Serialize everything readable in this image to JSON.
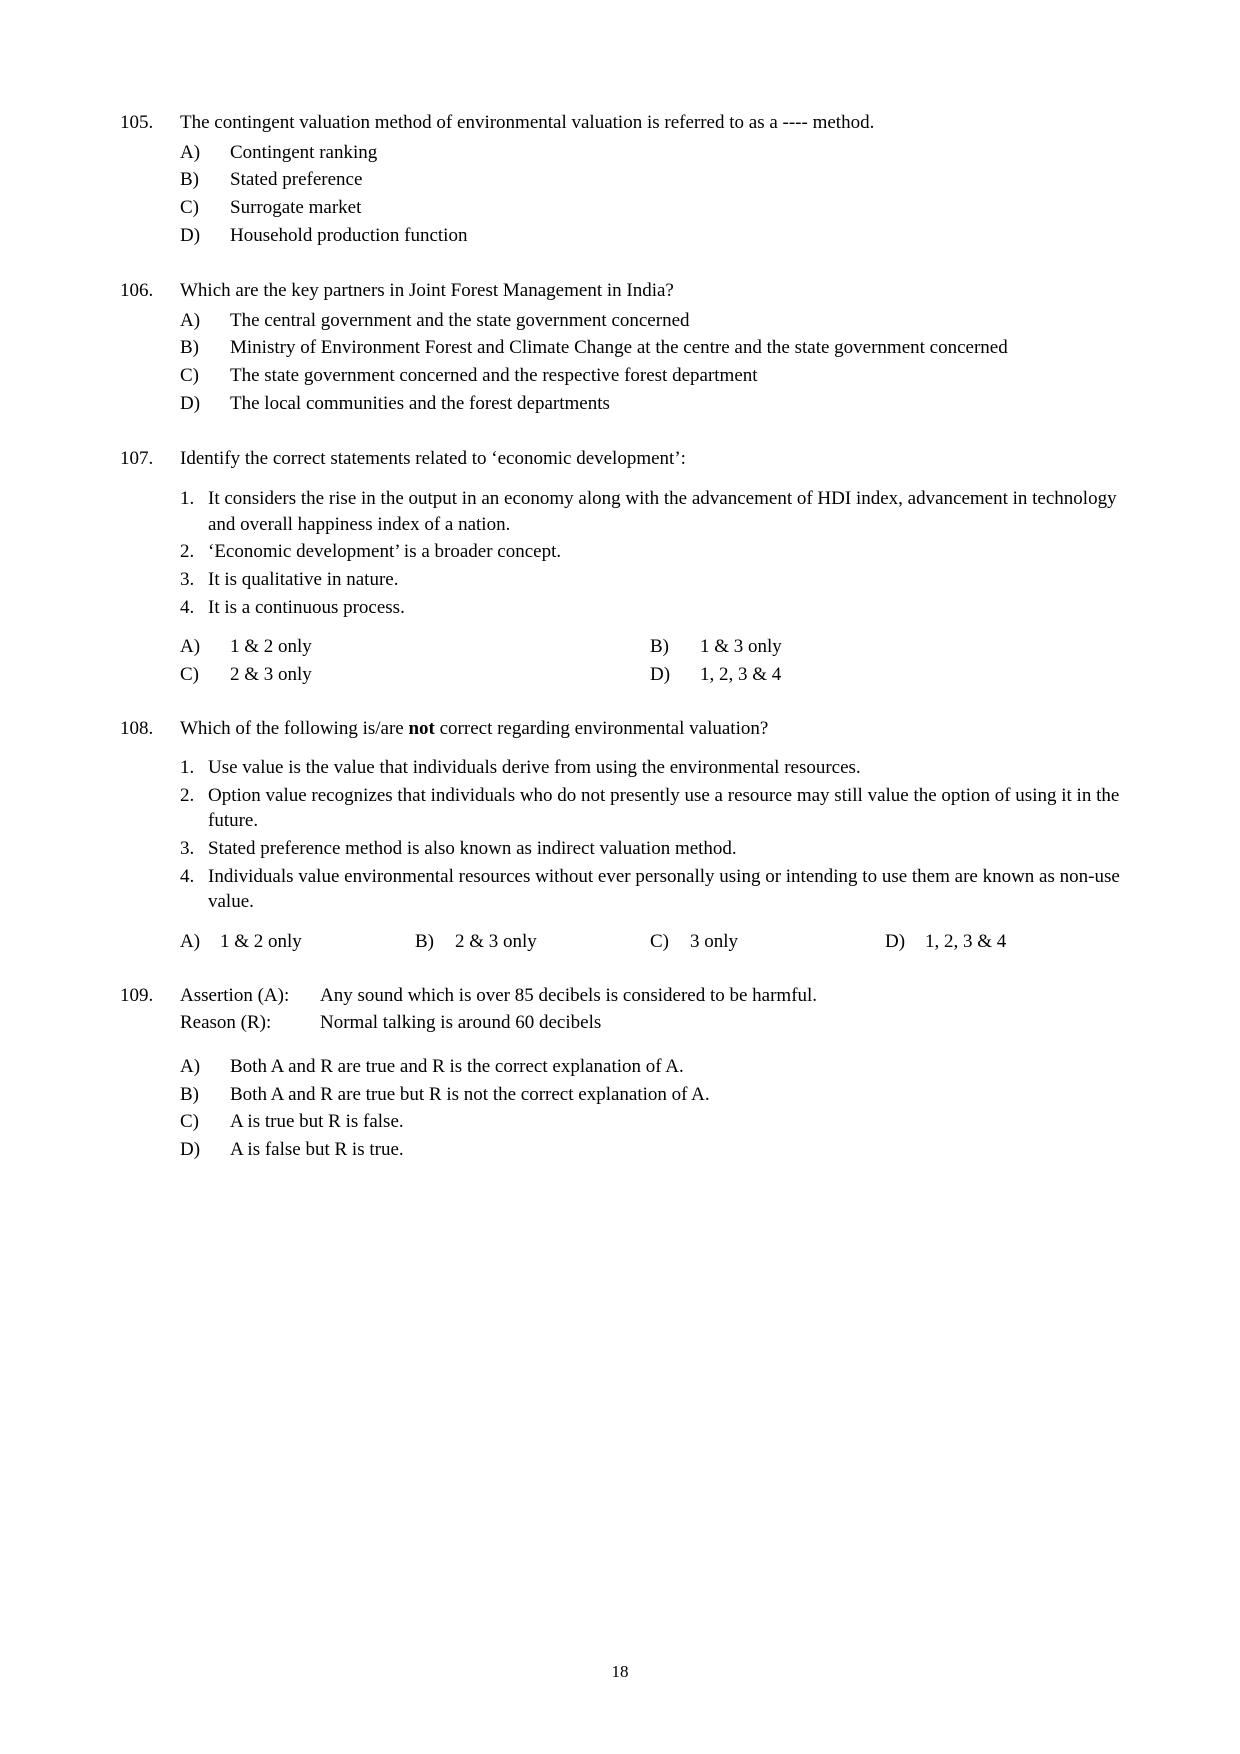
{
  "page_number": "18",
  "questions": [
    {
      "number": "105.",
      "text": "The contingent valuation method of environmental valuation is referred to as a ---- method.",
      "options_layout": "vertical",
      "options": [
        {
          "letter": "A)",
          "text": "Contingent ranking"
        },
        {
          "letter": "B)",
          "text": "Stated preference"
        },
        {
          "letter": "C)",
          "text": "Surrogate market"
        },
        {
          "letter": "D)",
          "text": "Household production function"
        }
      ]
    },
    {
      "number": "106.",
      "text": "Which are the key partners in Joint Forest Management in India?",
      "options_layout": "vertical",
      "options": [
        {
          "letter": "A)",
          "text": "The central government and the state government concerned"
        },
        {
          "letter": "B)",
          "text": "Ministry of Environment Forest and Climate Change at the centre and the state government concerned"
        },
        {
          "letter": "C)",
          "text": "The state government concerned and the respective forest department"
        },
        {
          "letter": "D)",
          "text": "The local communities and the forest departments"
        }
      ]
    },
    {
      "number": "107.",
      "text": "Identify the correct statements related to ‘economic development’:",
      "statements": [
        {
          "num": "1.",
          "text": "It considers the rise in the output in an economy along with the advancement of HDI index, advancement in technology and overall happiness index of a nation."
        },
        {
          "num": "2.",
          "text": "‘Economic development’ is a broader concept."
        },
        {
          "num": "3.",
          "text": "It is qualitative in nature."
        },
        {
          "num": "4.",
          "text": "It is a continuous process."
        }
      ],
      "options_layout": "two-col",
      "options": [
        {
          "letter": "A)",
          "text": "1 & 2 only"
        },
        {
          "letter": "B)",
          "text": "1 & 3 only"
        },
        {
          "letter": "C)",
          "text": "2 & 3 only"
        },
        {
          "letter": "D)",
          "text": "1, 2, 3 & 4"
        }
      ]
    },
    {
      "number": "108.",
      "text_html": "Which of the following is/are <b>not</b> correct regarding environmental valuation?",
      "statements": [
        {
          "num": "1.",
          "text": "Use value is the value that individuals derive from using the environmental resources."
        },
        {
          "num": "2.",
          "text": "Option value recognizes that individuals who do not presently use a resource may still value the option of using it in the future."
        },
        {
          "num": "3.",
          "text": "Stated preference method is also known as indirect valuation method."
        },
        {
          "num": "4.",
          "text": "Individuals value environmental resources without ever personally using or intending to use them are known as non-use value."
        }
      ],
      "options_layout": "four-col",
      "options": [
        {
          "letter": "A)",
          "text": "1 & 2 only"
        },
        {
          "letter": "B)",
          "text": "2 & 3 only"
        },
        {
          "letter": "C)",
          "text": "3 only"
        },
        {
          "letter": "D)",
          "text": "1, 2, 3 & 4"
        }
      ]
    },
    {
      "number": "109.",
      "assertion_reason": {
        "assertion_label": "Assertion (A):",
        "assertion_text": "Any sound which is over 85 decibels is considered to be harmful.",
        "reason_label": "Reason (R):",
        "reason_text": "Normal talking is around 60 decibels"
      },
      "options_layout": "vertical",
      "options": [
        {
          "letter": "A)",
          "text": "Both A and R are true and R is the correct explanation of A."
        },
        {
          "letter": "B)",
          "text": "Both A and R are true but R is not the correct explanation of A."
        },
        {
          "letter": "C)",
          "text": "A is true but R is false."
        },
        {
          "letter": "D)",
          "text": "A is false but R is true."
        }
      ]
    }
  ]
}
